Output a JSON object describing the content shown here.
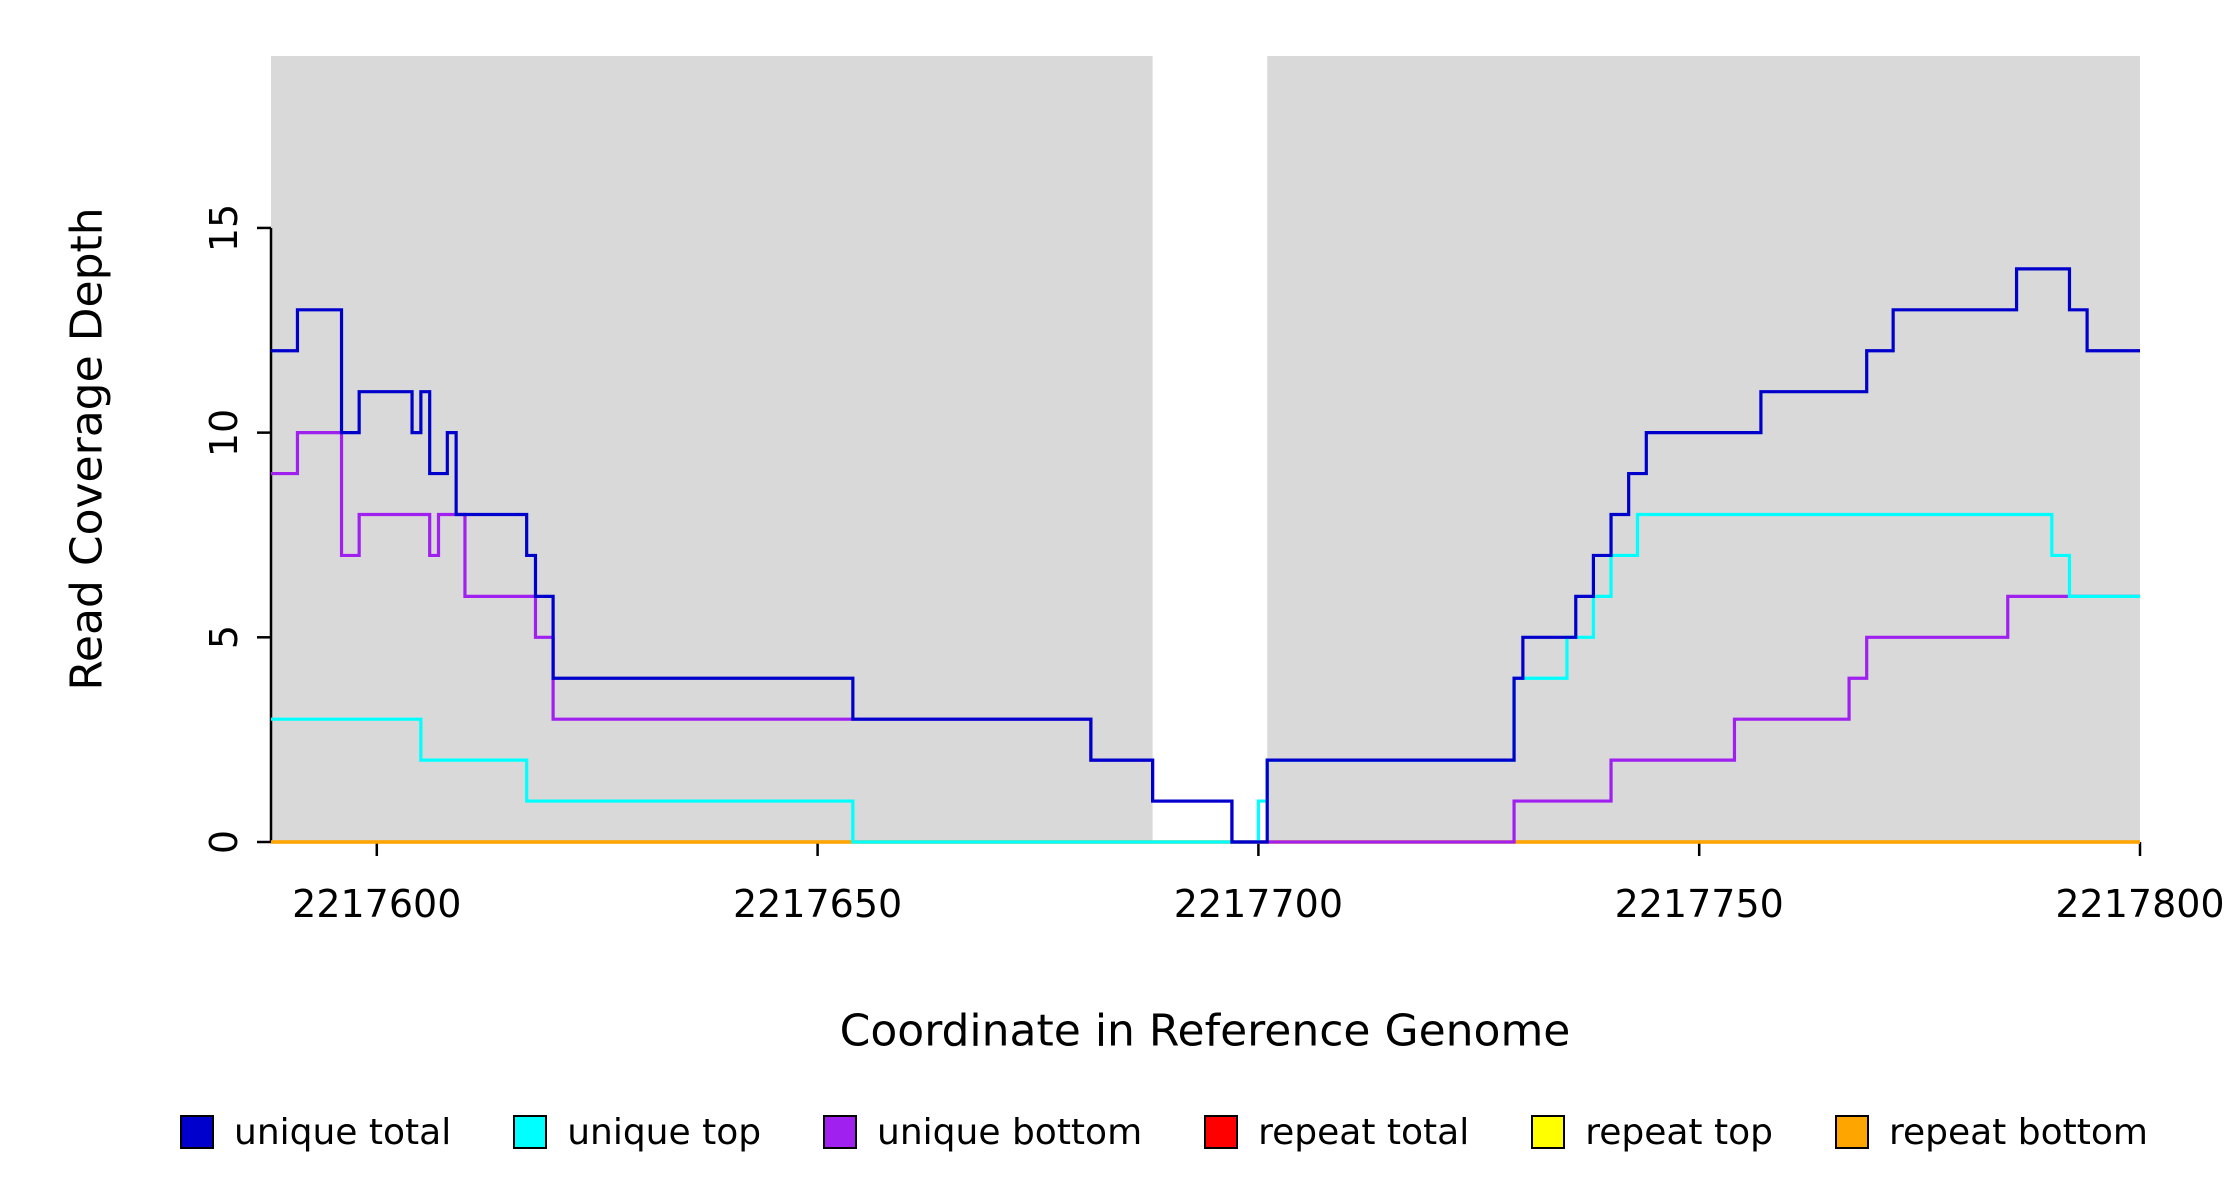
{
  "chart_data": {
    "type": "line",
    "subtype": "step-after",
    "title": "",
    "xlabel": "Coordinate in Reference Genome",
    "ylabel": "Read Coverage Depth",
    "xlim": [
      2217588,
      2217800
    ],
    "ylim": [
      0,
      19.2
    ],
    "grid": false,
    "legend_position": "bottom",
    "background_color": "#d9d9d9",
    "background_regions": [
      [
        2217588,
        2217688
      ],
      [
        2217701,
        2217800
      ]
    ],
    "xticks": {
      "values": [
        2217600,
        2217650,
        2217700,
        2217750,
        2217800
      ],
      "labels": [
        "2217600",
        "2217650",
        "2217700",
        "2217750",
        "2217800"
      ]
    },
    "yticks": {
      "values": [
        0,
        5,
        10,
        15
      ],
      "labels": [
        "0",
        "5",
        "10",
        "15"
      ]
    },
    "series": [
      {
        "name": "unique total",
        "color": "#0000cd",
        "points": [
          [
            2217588,
            12
          ],
          [
            2217591,
            13
          ],
          [
            2217596,
            10
          ],
          [
            2217598,
            11
          ],
          [
            2217604,
            10
          ],
          [
            2217605,
            11
          ],
          [
            2217606,
            9
          ],
          [
            2217608,
            10
          ],
          [
            2217609,
            8
          ],
          [
            2217617,
            7
          ],
          [
            2217618,
            6
          ],
          [
            2217620,
            4
          ],
          [
            2217654,
            3
          ],
          [
            2217681,
            2
          ],
          [
            2217688,
            1
          ],
          [
            2217697,
            0
          ],
          [
            2217701,
            2
          ],
          [
            2217729,
            4
          ],
          [
            2217730,
            5
          ],
          [
            2217736,
            6
          ],
          [
            2217738,
            7
          ],
          [
            2217740,
            8
          ],
          [
            2217742,
            9
          ],
          [
            2217744,
            10
          ],
          [
            2217757,
            11
          ],
          [
            2217769,
            12
          ],
          [
            2217772,
            13
          ],
          [
            2217786,
            14
          ],
          [
            2217792,
            13
          ],
          [
            2217794,
            12
          ]
        ]
      },
      {
        "name": "unique top",
        "color": "#00ffff",
        "points": [
          [
            2217588,
            3
          ],
          [
            2217605,
            2
          ],
          [
            2217617,
            1
          ],
          [
            2217654,
            0
          ],
          [
            2217700,
            1
          ],
          [
            2217701,
            2
          ],
          [
            2217729,
            4
          ],
          [
            2217735,
            5
          ],
          [
            2217738,
            6
          ],
          [
            2217740,
            7
          ],
          [
            2217743,
            8
          ],
          [
            2217790,
            7
          ],
          [
            2217792,
            6
          ]
        ]
      },
      {
        "name": "unique bottom",
        "color": "#a020f0",
        "points": [
          [
            2217588,
            9
          ],
          [
            2217591,
            10
          ],
          [
            2217596,
            7
          ],
          [
            2217598,
            8
          ],
          [
            2217606,
            7
          ],
          [
            2217607,
            8
          ],
          [
            2217610,
            6
          ],
          [
            2217618,
            5
          ],
          [
            2217620,
            3
          ],
          [
            2217681,
            2
          ],
          [
            2217688,
            1
          ],
          [
            2217697,
            0
          ],
          [
            2217729,
            1
          ],
          [
            2217740,
            2
          ],
          [
            2217754,
            3
          ],
          [
            2217767,
            4
          ],
          [
            2217769,
            5
          ],
          [
            2217785,
            6
          ]
        ]
      },
      {
        "name": "repeat total",
        "color": "#ff0000",
        "points": [
          [
            2217588,
            0
          ]
        ]
      },
      {
        "name": "repeat top",
        "color": "#ffff00",
        "points": [
          [
            2217588,
            0
          ]
        ]
      },
      {
        "name": "repeat bottom",
        "color": "#ffa500",
        "points": [
          [
            2217588,
            0
          ]
        ]
      }
    ],
    "draw_order": [
      3,
      4,
      5,
      2,
      1,
      0
    ]
  }
}
